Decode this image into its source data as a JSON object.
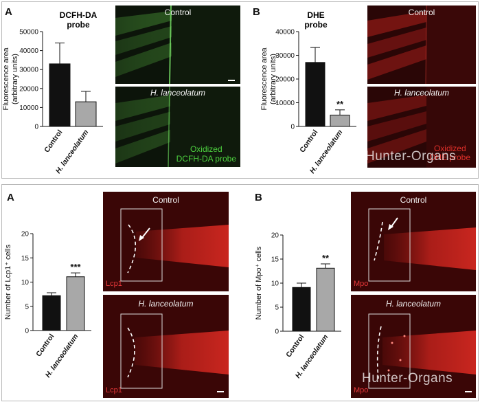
{
  "top_panel": {
    "panel_a": {
      "letter": "A",
      "title_line1": "DCFH-DA",
      "title_line2": "probe",
      "image_control_title": "Control",
      "image_treated_title": "H. lanceolatum",
      "probe_label_line1": "Oxidized",
      "probe_label_line2": "DCFH-DA probe"
    },
    "panel_b": {
      "letter": "B",
      "title_line1": "DHE",
      "title_line2": "probe",
      "image_control_title": "Control",
      "image_treated_title": "H. lanceolatum",
      "probe_label_line1": "Oxidized",
      "probe_label_line2": "DHE probe",
      "watermark": "Hunter-Organs"
    }
  },
  "bottom_panel": {
    "panel_a": {
      "letter": "A",
      "image_control_title": "Control",
      "image_treated_title": "H. lanceolatum",
      "stain_label": "Lcp1"
    },
    "panel_b": {
      "letter": "B",
      "image_control_title": "Control",
      "image_treated_title": "H. lanceolatum",
      "stain_label": "Mpo",
      "watermark": "Hunter-Organs"
    }
  },
  "colors": {
    "control_bar": "#111111",
    "treated_bar": "#a8a8a8",
    "green_fluor": "#43c935",
    "red_fluor": "#e0302a"
  },
  "chart_data": [
    {
      "type": "bar",
      "ylabel_line1": "Fluorescence area",
      "ylabel_line2": "(arbitrary units)",
      "categories": [
        "Control",
        "H. lanceolatum"
      ],
      "values": [
        33000,
        13000
      ],
      "errors": [
        11000,
        5500
      ],
      "significance": [
        "",
        ""
      ],
      "ylim": [
        0,
        50000
      ],
      "yticks": [
        "0",
        "10000",
        "20000",
        "30000",
        "40000",
        "50000"
      ]
    },
    {
      "type": "bar",
      "ylabel_line1": "Fluorescence area",
      "ylabel_line2": "(arbitrary units)",
      "categories": [
        "Control",
        "H. lanceolatum"
      ],
      "values": [
        27000,
        4800
      ],
      "errors": [
        6300,
        2200
      ],
      "significance": [
        "",
        "**"
      ],
      "ylim": [
        0,
        40000
      ],
      "yticks": [
        "0",
        "10000",
        "20000",
        "30000",
        "40000"
      ]
    },
    {
      "type": "bar",
      "ylabel": "Number of Lcp1⁺ cells",
      "categories": [
        "Control",
        "H. lanceolatum"
      ],
      "values": [
        7.2,
        11.1
      ],
      "errors": [
        0.6,
        0.8
      ],
      "significance": [
        "",
        "***"
      ],
      "ylim": [
        0,
        20
      ],
      "yticks": [
        "0",
        "5",
        "10",
        "15",
        "20"
      ]
    },
    {
      "type": "bar",
      "ylabel": "Number of Mpo⁺ cells",
      "categories": [
        "Control",
        "H. lanceolatum"
      ],
      "values": [
        9.1,
        13.1
      ],
      "errors": [
        0.9,
        0.9
      ],
      "significance": [
        "",
        "**"
      ],
      "ylim": [
        0,
        20
      ],
      "yticks": [
        "0",
        "5",
        "10",
        "15",
        "20"
      ]
    }
  ]
}
